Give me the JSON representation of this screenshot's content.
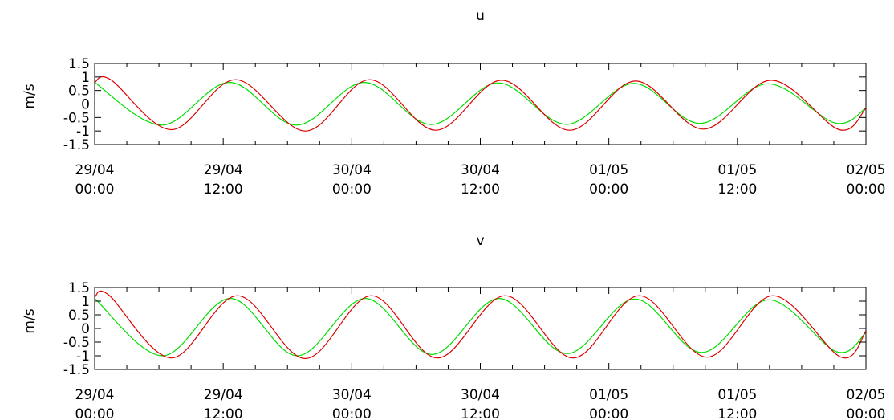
{
  "chart_data": [
    {
      "type": "line",
      "title": "u",
      "ylabel": "m/s",
      "xlabel": "",
      "xlim": [
        "2024-04-29T00:00",
        "2024-05-02T00:00"
      ],
      "ylim": [
        -1.5,
        1.5
      ],
      "yticks": [
        {
          "value": 1.5,
          "label": "1.5"
        },
        {
          "value": 1,
          "label": "1"
        },
        {
          "value": 0.5,
          "label": "0.5"
        },
        {
          "value": 0,
          "label": "0"
        },
        {
          "value": -0.5,
          "label": "-0.5"
        },
        {
          "value": -1,
          "label": "-1"
        },
        {
          "value": -1.5,
          "label": "-1.5"
        }
      ],
      "xticks": [
        {
          "value": "2024-04-29T00:00",
          "label1": "29/04",
          "label2": "00:00"
        },
        {
          "value": "2024-04-29T12:00",
          "label1": "29/04",
          "label2": "12:00"
        },
        {
          "value": "2024-04-30T00:00",
          "label1": "30/04",
          "label2": "00:00"
        },
        {
          "value": "2024-04-30T12:00",
          "label1": "30/04",
          "label2": "12:00"
        },
        {
          "value": "2024-05-01T00:00",
          "label1": "01/05",
          "label2": "00:00"
        },
        {
          "value": "2024-05-01T12:00",
          "label1": "01/05",
          "label2": "12:00"
        },
        {
          "value": "2024-05-02T00:00",
          "label1": "02/05",
          "label2": "00:00"
        }
      ],
      "grid": false,
      "legend": "none",
      "series": [
        {
          "color": "#00dd00",
          "x": [
            "2024-04-29T00:00",
            "2024-04-29T06:15",
            "2024-04-29T12:35",
            "2024-04-29T18:50",
            "2024-04-30T01:10",
            "2024-04-30T07:25",
            "2024-04-30T13:40",
            "2024-04-30T20:00",
            "2024-05-01T02:20",
            "2024-05-01T08:30",
            "2024-05-01T14:50",
            "2024-05-01T21:05",
            "2024-05-02T00:00"
          ],
          "values": [
            0.8,
            -0.78,
            0.8,
            -0.78,
            0.8,
            -0.76,
            0.78,
            -0.75,
            0.76,
            -0.72,
            0.75,
            -0.7,
            -0.15
          ]
        },
        {
          "color": "#dd0000",
          "x": [
            "2024-04-29T00:00",
            "2024-04-29T01:30",
            "2024-04-29T07:10",
            "2024-04-29T13:10",
            "2024-04-29T19:40",
            "2024-04-30T01:40",
            "2024-04-30T07:50",
            "2024-04-30T14:00",
            "2024-04-30T20:20",
            "2024-05-01T02:30",
            "2024-05-01T08:50",
            "2024-05-01T15:10",
            "2024-05-01T21:30",
            "2024-05-02T00:00"
          ],
          "values": [
            0.8,
            0.9,
            -0.95,
            0.9,
            -1.0,
            0.9,
            -0.97,
            0.88,
            -0.97,
            0.85,
            -0.93,
            0.88,
            -0.95,
            -0.15
          ]
        }
      ]
    },
    {
      "type": "line",
      "title": "v",
      "ylabel": "m/s",
      "xlabel": "",
      "xlim": [
        "2024-04-29T00:00",
        "2024-05-02T00:00"
      ],
      "ylim": [
        -1.5,
        1.5
      ],
      "yticks": [
        {
          "value": 1.5,
          "label": "1.5"
        },
        {
          "value": 1,
          "label": "1"
        },
        {
          "value": 0.5,
          "label": "0.5"
        },
        {
          "value": 0,
          "label": "0"
        },
        {
          "value": -0.5,
          "label": "-0.5"
        },
        {
          "value": -1,
          "label": "-1"
        },
        {
          "value": -1.5,
          "label": "-1.5"
        }
      ],
      "xticks": [
        {
          "value": "2024-04-29T00:00",
          "label1": "29/04",
          "label2": "00:00"
        },
        {
          "value": "2024-04-29T12:00",
          "label1": "29/04",
          "label2": "12:00"
        },
        {
          "value": "2024-04-30T00:00",
          "label1": "30/04",
          "label2": "00:00"
        },
        {
          "value": "2024-04-30T12:00",
          "label1": "30/04",
          "label2": "12:00"
        },
        {
          "value": "2024-05-01T00:00",
          "label1": "01/05",
          "label2": "00:00"
        },
        {
          "value": "2024-05-01T12:00",
          "label1": "01/05",
          "label2": "12:00"
        },
        {
          "value": "2024-05-02T00:00",
          "label1": "02/05",
          "label2": "00:00"
        }
      ],
      "grid": false,
      "legend": "none",
      "series": [
        {
          "color": "#00dd00",
          "x": [
            "2024-04-29T00:00",
            "2024-04-29T06:20",
            "2024-04-29T12:40",
            "2024-04-29T18:55",
            "2024-04-30T01:15",
            "2024-04-30T07:30",
            "2024-04-30T13:45",
            "2024-04-30T20:05",
            "2024-05-01T02:25",
            "2024-05-01T08:40",
            "2024-05-01T14:55",
            "2024-05-01T21:15",
            "2024-05-02T00:00"
          ],
          "values": [
            1.1,
            -1.0,
            1.1,
            -1.0,
            1.1,
            -0.95,
            1.1,
            -0.92,
            1.08,
            -0.88,
            1.05,
            -0.85,
            -0.15
          ]
        },
        {
          "color": "#dd0000",
          "x": [
            "2024-04-29T00:00",
            "2024-04-29T01:20",
            "2024-04-29T07:10",
            "2024-04-29T13:20",
            "2024-04-29T19:40",
            "2024-04-30T01:50",
            "2024-04-30T08:00",
            "2024-04-30T14:20",
            "2024-04-30T20:40",
            "2024-05-01T02:50",
            "2024-05-01T09:10",
            "2024-05-01T15:20",
            "2024-05-01T21:40",
            "2024-05-02T00:00"
          ],
          "values": [
            1.15,
            1.22,
            -1.08,
            1.2,
            -1.1,
            1.2,
            -1.08,
            1.2,
            -1.08,
            1.2,
            -1.05,
            1.2,
            -1.05,
            -0.1
          ]
        }
      ]
    }
  ]
}
